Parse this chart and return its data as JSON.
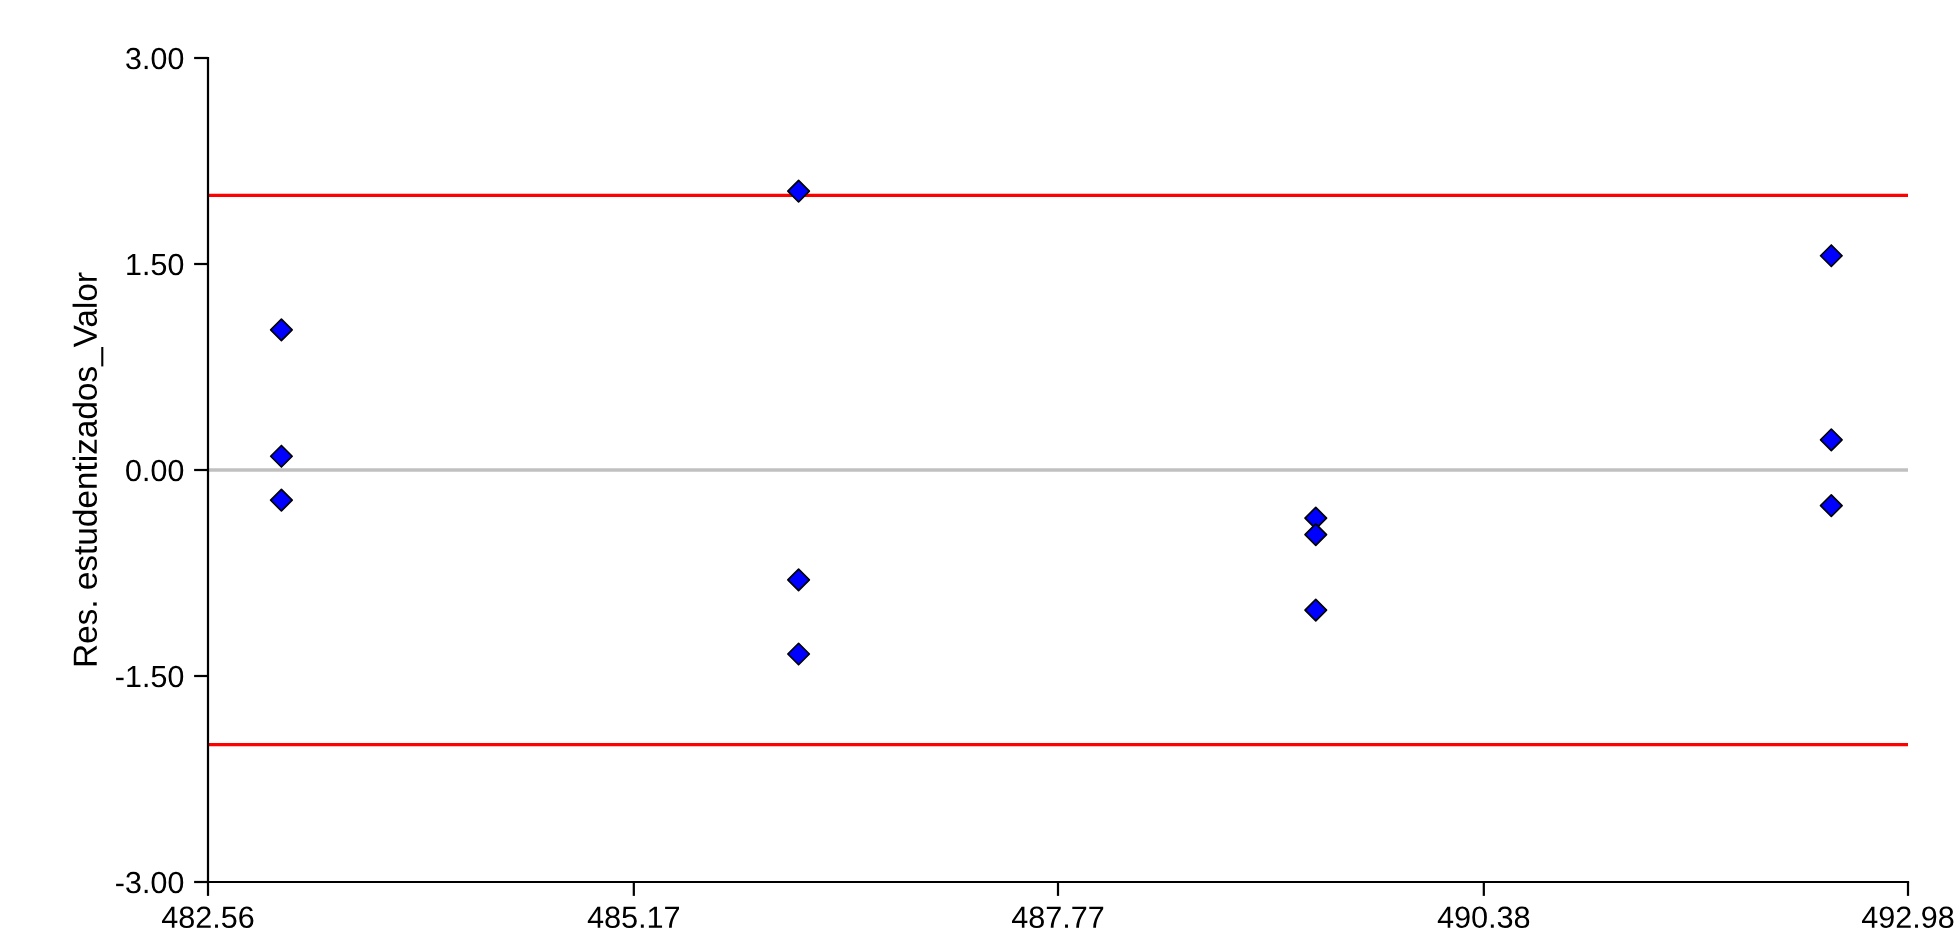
{
  "chart_data": {
    "type": "scatter",
    "ylabel": "Res. estudentizados_Valor",
    "x": [
      483.01,
      483.01,
      483.01,
      486.18,
      486.18,
      486.18,
      489.35,
      489.35,
      489.35,
      492.51,
      492.51,
      492.51
    ],
    "series": [
      {
        "color": "#0000ff",
        "values": [
          1.02,
          0.1,
          -0.22,
          2.03,
          -0.8,
          -1.34,
          -0.35,
          -0.47,
          -1.02,
          1.56,
          0.22,
          -0.26
        ]
      }
    ],
    "xlim": [
      482.56,
      492.98
    ],
    "xticks": [
      {
        "value": 482.56,
        "label": "482.56"
      },
      {
        "value": 485.17,
        "label": "485.17"
      },
      {
        "value": 487.77,
        "label": "487.77"
      },
      {
        "value": 490.38,
        "label": "490.38"
      },
      {
        "value": 492.98,
        "label": "492.98"
      }
    ],
    "ylim": [
      -3,
      3
    ],
    "yticks": [
      {
        "value": -3,
        "label": "-3.00"
      },
      {
        "value": -1.5,
        "label": "-1.50"
      },
      {
        "value": 0,
        "label": "0.00"
      },
      {
        "value": 1.5,
        "label": "1.50"
      },
      {
        "value": 3,
        "label": "3.00"
      }
    ],
    "ref_lines": [
      {
        "axis": "y",
        "value": 2,
        "color": "#ff0000"
      },
      {
        "axis": "y",
        "value": -2,
        "color": "#ff0000"
      },
      {
        "axis": "y",
        "value": 0,
        "color": "#c0c0c0"
      }
    ],
    "marker": "diamond",
    "grid": false
  }
}
